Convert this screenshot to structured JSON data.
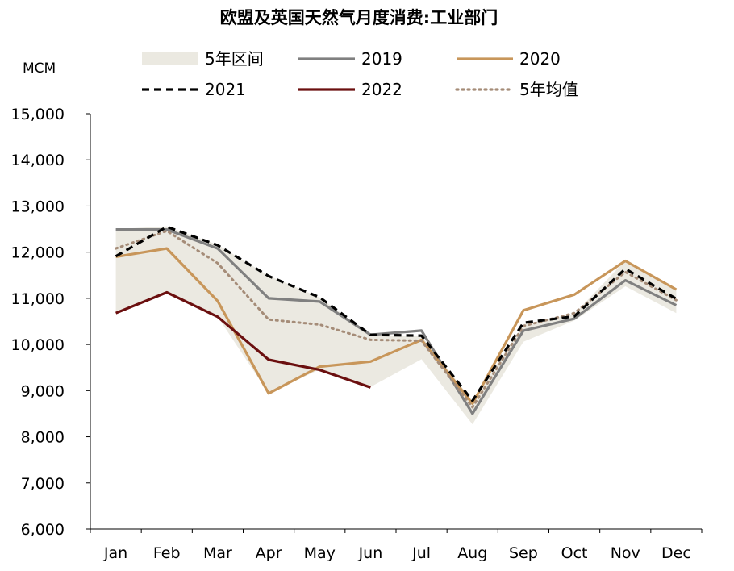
{
  "chart_data": {
    "type": "line",
    "title": "欧盟及英国天然气月度消费:工业部门",
    "ylabel": "MCM",
    "xlabel": "",
    "categories": [
      "Jan",
      "Feb",
      "Mar",
      "Apr",
      "May",
      "Jun",
      "Jul",
      "Aug",
      "Sep",
      "Oct",
      "Nov",
      "Dec"
    ],
    "ylim": [
      6000,
      15000
    ],
    "yticks": [
      6000,
      7000,
      8000,
      9000,
      10000,
      11000,
      12000,
      13000,
      14000,
      15000
    ],
    "ytick_labels": [
      "6,000",
      "7,000",
      "8,000",
      "9,000",
      "10,000",
      "11,000",
      "12,000",
      "13,000",
      "14,000",
      "15,000"
    ],
    "band": {
      "name": "5年区间",
      "color": "#ebe9e1",
      "upper": [
        12500,
        12560,
        12160,
        11490,
        11020,
        10210,
        10180,
        8780,
        10440,
        10660,
        11820,
        11190
      ],
      "lower": [
        10680,
        11130,
        10600,
        8940,
        9460,
        9080,
        9680,
        8270,
        10060,
        10520,
        11260,
        10680
      ]
    },
    "series": [
      {
        "name": "2019",
        "color": "#808080",
        "style": "solid",
        "values": [
          12490,
          12490,
          12080,
          11000,
          10930,
          10210,
          10300,
          8500,
          10300,
          10560,
          11390,
          10850
        ]
      },
      {
        "name": "2020",
        "color": "#c8965a",
        "style": "solid",
        "values": [
          11900,
          12080,
          10940,
          8940,
          9520,
          9630,
          10100,
          8720,
          10740,
          11080,
          11810,
          11190
        ]
      },
      {
        "name": "2021",
        "color": "#000000",
        "style": "dashed",
        "values": [
          11910,
          12550,
          12150,
          11480,
          11020,
          10210,
          10190,
          8780,
          10470,
          10610,
          11640,
          10990
        ]
      },
      {
        "name": "2022",
        "color": "#6b0f0f",
        "style": "solid",
        "values": [
          10680,
          11130,
          10600,
          9670,
          9450,
          9070,
          null,
          null,
          null,
          null,
          null,
          null
        ]
      },
      {
        "name": "5年均值",
        "color": "#a58c78",
        "style": "dotted",
        "values": [
          12080,
          12460,
          11760,
          10540,
          10430,
          10100,
          10080,
          8640,
          10400,
          10680,
          11570,
          10960
        ]
      }
    ],
    "legend_placement": "top",
    "grid": false
  }
}
